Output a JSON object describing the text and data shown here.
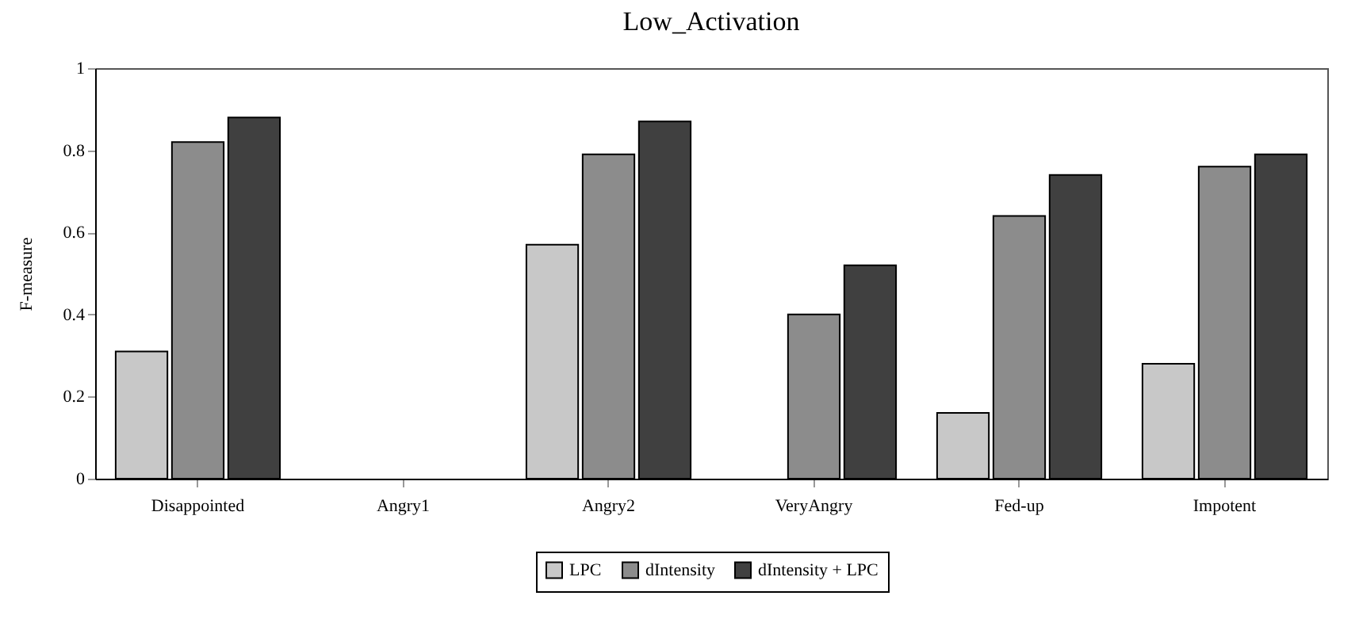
{
  "chart_data": {
    "type": "bar",
    "title": "Low_Activation",
    "ylabel": "F-measure",
    "categories": [
      "Disappointed",
      "Angry1",
      "Angry2",
      "VeryAngry",
      "Fed-up",
      "Impotent"
    ],
    "series": [
      {
        "name": "LPC",
        "color": "#c8c8c8",
        "values": [
          0.31,
          0,
          0.57,
          0,
          0.16,
          0.28
        ]
      },
      {
        "name": "dIntensity",
        "color": "#8c8c8c",
        "values": [
          0.82,
          0,
          0.79,
          0.4,
          0.64,
          0.76
        ]
      },
      {
        "name": "dIntensity + LPC",
        "color": "#404040",
        "values": [
          0.88,
          0,
          0.87,
          0.52,
          0.74,
          0.79
        ]
      }
    ],
    "ylim": [
      0,
      1
    ],
    "yticks": [
      0,
      0.2,
      0.4,
      0.6,
      0.8,
      1
    ],
    "grid": false,
    "legend": "bottom"
  }
}
